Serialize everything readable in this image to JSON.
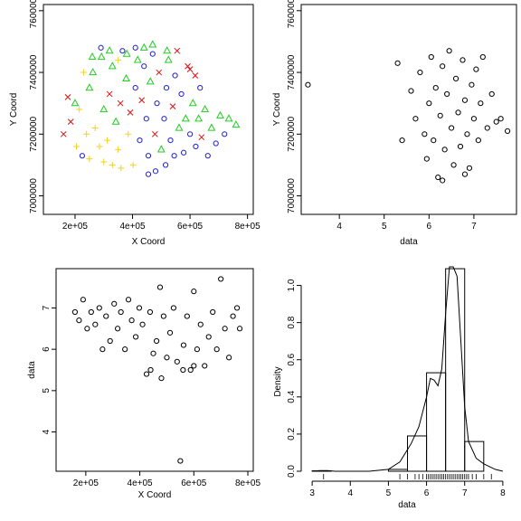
{
  "chart_data": [
    {
      "type": "scatter",
      "title": "",
      "xlabel": "X Coord",
      "ylabel": "Y Coord",
      "xlim": [
        90000,
        820000
      ],
      "ylim": [
        6940000,
        7620000
      ],
      "xticks": [
        200000,
        400000,
        600000,
        800000
      ],
      "xtick_labels": [
        "2e+05",
        "4e+05",
        "6e+05",
        "8e+05"
      ],
      "yticks": [
        7000000,
        7200000,
        7400000,
        7600000
      ],
      "ytick_labels": [
        "7000000",
        "7200000",
        "7400000",
        "7600000"
      ],
      "marker_classes": [
        {
          "symbol": "plus",
          "color": "#f5d020"
        },
        {
          "symbol": "triangle",
          "color": "#22cc22"
        },
        {
          "symbol": "cross",
          "color": "#dd1111"
        },
        {
          "symbol": "circle",
          "color": "#1f1fd0"
        }
      ],
      "points": [
        [
          160000,
          7200000,
          2
        ],
        [
          175000,
          7320000,
          2
        ],
        [
          205000,
          7160000,
          0
        ],
        [
          215000,
          7280000,
          0
        ],
        [
          225000,
          7130000,
          3
        ],
        [
          240000,
          7200000,
          0
        ],
        [
          250000,
          7350000,
          1
        ],
        [
          262000,
          7400000,
          1
        ],
        [
          270000,
          7220000,
          0
        ],
        [
          285000,
          7160000,
          0
        ],
        [
          292000,
          7450000,
          1
        ],
        [
          300000,
          7280000,
          1
        ],
        [
          312000,
          7180000,
          0
        ],
        [
          320000,
          7330000,
          2
        ],
        [
          330000,
          7420000,
          1
        ],
        [
          342000,
          7240000,
          1
        ],
        [
          350000,
          7150000,
          0
        ],
        [
          358000,
          7300000,
          2
        ],
        [
          365000,
          7470000,
          3
        ],
        [
          378000,
          7380000,
          1
        ],
        [
          385000,
          7200000,
          0
        ],
        [
          392000,
          7270000,
          2
        ],
        [
          402000,
          7100000,
          0
        ],
        [
          410000,
          7350000,
          3
        ],
        [
          418000,
          7440000,
          1
        ],
        [
          425000,
          7180000,
          3
        ],
        [
          432000,
          7310000,
          2
        ],
        [
          440000,
          7420000,
          3
        ],
        [
          448000,
          7250000,
          3
        ],
        [
          455000,
          7130000,
          3
        ],
        [
          462000,
          7370000,
          1
        ],
        [
          470000,
          7460000,
          3
        ],
        [
          478000,
          7200000,
          2
        ],
        [
          485000,
          7300000,
          3
        ],
        [
          492000,
          7400000,
          2
        ],
        [
          500000,
          7150000,
          1
        ],
        [
          510000,
          7250000,
          3
        ],
        [
          518000,
          7350000,
          3
        ],
        [
          525000,
          7440000,
          1
        ],
        [
          532000,
          7180000,
          3
        ],
        [
          540000,
          7290000,
          2
        ],
        [
          548000,
          7390000,
          3
        ],
        [
          555000,
          7470000,
          2
        ],
        [
          562000,
          7220000,
          1
        ],
        [
          570000,
          7330000,
          3
        ],
        [
          578000,
          7140000,
          3
        ],
        [
          585000,
          7250000,
          1
        ],
        [
          592000,
          7420000,
          2
        ],
        [
          600000,
          7200000,
          3
        ],
        [
          610000,
          7300000,
          1
        ],
        [
          620000,
          7160000,
          3
        ],
        [
          630000,
          7250000,
          1
        ],
        [
          640000,
          7190000,
          2
        ],
        [
          652000,
          7280000,
          1
        ],
        [
          662000,
          7130000,
          3
        ],
        [
          675000,
          7220000,
          1
        ],
        [
          690000,
          7170000,
          3
        ],
        [
          705000,
          7260000,
          1
        ],
        [
          720000,
          7200000,
          3
        ],
        [
          735000,
          7250000,
          1
        ],
        [
          760000,
          7230000,
          1
        ],
        [
          600000,
          7410000,
          2
        ],
        [
          618000,
          7390000,
          2
        ],
        [
          635000,
          7350000,
          3
        ],
        [
          520000,
          7470000,
          1
        ],
        [
          470000,
          7490000,
          1
        ],
        [
          440000,
          7480000,
          1
        ],
        [
          410000,
          7480000,
          3
        ],
        [
          380000,
          7460000,
          1
        ],
        [
          350000,
          7440000,
          0
        ],
        [
          320000,
          7470000,
          1
        ],
        [
          290000,
          7480000,
          3
        ],
        [
          260000,
          7450000,
          1
        ],
        [
          230000,
          7400000,
          0
        ],
        [
          200000,
          7300000,
          1
        ],
        [
          185000,
          7240000,
          2
        ],
        [
          545000,
          7130000,
          3
        ],
        [
          515000,
          7100000,
          3
        ],
        [
          480000,
          7080000,
          3
        ],
        [
          455000,
          7070000,
          3
        ],
        [
          360000,
          7090000,
          0
        ],
        [
          330000,
          7100000,
          0
        ],
        [
          300000,
          7110000,
          0
        ],
        [
          250000,
          7120000,
          0
        ]
      ]
    },
    {
      "type": "scatter",
      "title": "",
      "xlabel": "data",
      "ylabel": "Y Coord",
      "xlim": [
        3.15,
        7.95
      ],
      "ylim": [
        6940000,
        7620000
      ],
      "xticks": [
        4,
        5,
        6,
        7
      ],
      "xtick_labels": [
        "4",
        "5",
        "6",
        "7"
      ],
      "yticks": [
        7000000,
        7200000,
        7400000,
        7600000
      ],
      "ytick_labels": [
        "7000000",
        "7200000",
        "7400000",
        "7600000"
      ],
      "points": [
        [
          3.3,
          7360000
        ],
        [
          5.3,
          7430000
        ],
        [
          5.4,
          7180000
        ],
        [
          5.6,
          7340000
        ],
        [
          5.7,
          7250000
        ],
        [
          5.8,
          7400000
        ],
        [
          5.9,
          7200000
        ],
        [
          5.95,
          7120000
        ],
        [
          6.0,
          7300000
        ],
        [
          6.05,
          7450000
        ],
        [
          6.1,
          7180000
        ],
        [
          6.15,
          7350000
        ],
        [
          6.2,
          7060000
        ],
        [
          6.25,
          7260000
        ],
        [
          6.3,
          7420000
        ],
        [
          6.35,
          7150000
        ],
        [
          6.4,
          7330000
        ],
        [
          6.45,
          7470000
        ],
        [
          6.5,
          7220000
        ],
        [
          6.55,
          7100000
        ],
        [
          6.6,
          7380000
        ],
        [
          6.65,
          7270000
        ],
        [
          6.7,
          7160000
        ],
        [
          6.75,
          7440000
        ],
        [
          6.8,
          7310000
        ],
        [
          6.85,
          7200000
        ],
        [
          6.9,
          7090000
        ],
        [
          6.95,
          7360000
        ],
        [
          7.0,
          7250000
        ],
        [
          7.05,
          7410000
        ],
        [
          7.1,
          7180000
        ],
        [
          7.15,
          7300000
        ],
        [
          7.2,
          7450000
        ],
        [
          7.3,
          7220000
        ],
        [
          7.4,
          7330000
        ],
        [
          7.5,
          7240000
        ],
        [
          7.6,
          7250000
        ],
        [
          7.75,
          7210000
        ],
        [
          6.3,
          7050000
        ],
        [
          6.8,
          7070000
        ]
      ]
    },
    {
      "type": "scatter",
      "title": "",
      "xlabel": "X Coord",
      "ylabel": "data",
      "xlim": [
        90000,
        820000
      ],
      "ylim": [
        3.05,
        7.95
      ],
      "xticks": [
        200000,
        400000,
        600000,
        800000
      ],
      "xtick_labels": [
        "2e+05",
        "4e+05",
        "6e+05",
        "8e+05"
      ],
      "yticks": [
        4,
        5,
        6,
        7
      ],
      "ytick_labels": [
        "4",
        "5",
        "6",
        "7"
      ],
      "points": [
        [
          160000,
          6.9
        ],
        [
          175000,
          6.7
        ],
        [
          190000,
          7.2
        ],
        [
          205000,
          6.5
        ],
        [
          220000,
          6.9
        ],
        [
          235000,
          6.6
        ],
        [
          250000,
          7.0
        ],
        [
          262000,
          6.0
        ],
        [
          275000,
          6.8
        ],
        [
          290000,
          6.2
        ],
        [
          305000,
          7.1
        ],
        [
          318000,
          6.5
        ],
        [
          330000,
          6.9
        ],
        [
          345000,
          6.0
        ],
        [
          358000,
          7.2
        ],
        [
          370000,
          6.7
        ],
        [
          385000,
          6.3
        ],
        [
          398000,
          7.0
        ],
        [
          410000,
          6.6
        ],
        [
          425000,
          5.4
        ],
        [
          438000,
          6.9
        ],
        [
          450000,
          5.9
        ],
        [
          462000,
          6.2
        ],
        [
          475000,
          7.5
        ],
        [
          488000,
          6.8
        ],
        [
          500000,
          5.8
        ],
        [
          512000,
          6.4
        ],
        [
          525000,
          7.0
        ],
        [
          538000,
          5.7
        ],
        [
          550000,
          3.3
        ],
        [
          562000,
          6.1
        ],
        [
          575000,
          6.8
        ],
        [
          588000,
          5.5
        ],
        [
          600000,
          7.4
        ],
        [
          612000,
          6.0
        ],
        [
          625000,
          6.6
        ],
        [
          640000,
          5.6
        ],
        [
          655000,
          6.3
        ],
        [
          670000,
          6.9
        ],
        [
          685000,
          6.0
        ],
        [
          700000,
          7.7
        ],
        [
          715000,
          6.5
        ],
        [
          730000,
          5.8
        ],
        [
          745000,
          6.8
        ],
        [
          760000,
          7.0
        ],
        [
          770000,
          6.5
        ],
        [
          440000,
          5.5
        ],
        [
          480000,
          5.3
        ],
        [
          560000,
          5.5
        ],
        [
          600000,
          5.6
        ]
      ]
    },
    {
      "type": "histogram",
      "title": "",
      "xlabel": "data",
      "ylabel": "Density",
      "xlim": [
        2.95,
        8.05
      ],
      "ylim": [
        0,
        1.1
      ],
      "xticks": [
        3,
        4,
        5,
        6,
        7,
        8
      ],
      "xtick_labels": [
        "3",
        "4",
        "5",
        "6",
        "7",
        "8"
      ],
      "yticks": [
        0,
        0.2,
        0.4,
        0.6,
        0.8,
        1.0
      ],
      "ytick_labels": [
        "0.0",
        "0.2",
        "0.4",
        "0.6",
        "0.8",
        "1.0"
      ],
      "bins": [
        {
          "start": 3.0,
          "end": 3.5,
          "density": 0.002
        },
        {
          "start": 5.0,
          "end": 5.5,
          "density": 0.01
        },
        {
          "start": 5.5,
          "end": 6.0,
          "density": 0.19
        },
        {
          "start": 6.0,
          "end": 6.5,
          "density": 0.53
        },
        {
          "start": 6.5,
          "end": 7.0,
          "density": 1.09
        },
        {
          "start": 7.0,
          "end": 7.5,
          "density": 0.16
        }
      ],
      "density_curve": [
        [
          3.0,
          0.0
        ],
        [
          3.2,
          0.004
        ],
        [
          3.4,
          0.004
        ],
        [
          3.6,
          0.0
        ],
        [
          4.5,
          0.0
        ],
        [
          5.0,
          0.01
        ],
        [
          5.3,
          0.05
        ],
        [
          5.6,
          0.15
        ],
        [
          5.8,
          0.24
        ],
        [
          6.0,
          0.4
        ],
        [
          6.1,
          0.5
        ],
        [
          6.2,
          0.49
        ],
        [
          6.3,
          0.46
        ],
        [
          6.4,
          0.55
        ],
        [
          6.5,
          0.85
        ],
        [
          6.6,
          1.1
        ],
        [
          6.7,
          1.18
        ],
        [
          6.8,
          1.05
        ],
        [
          6.9,
          0.7
        ],
        [
          7.0,
          0.35
        ],
        [
          7.1,
          0.16
        ],
        [
          7.3,
          0.07
        ],
        [
          7.5,
          0.04
        ],
        [
          7.8,
          0.01
        ],
        [
          8.0,
          0.0
        ]
      ],
      "rug": [
        3.3,
        5.3,
        5.5,
        5.7,
        5.8,
        5.9,
        6.0,
        6.05,
        6.1,
        6.15,
        6.2,
        6.25,
        6.3,
        6.35,
        6.4,
        6.45,
        6.5,
        6.55,
        6.6,
        6.65,
        6.7,
        6.75,
        6.8,
        6.85,
        6.9,
        6.95,
        7.0,
        7.05,
        7.1,
        7.2,
        7.3,
        7.5,
        7.7
      ]
    }
  ]
}
